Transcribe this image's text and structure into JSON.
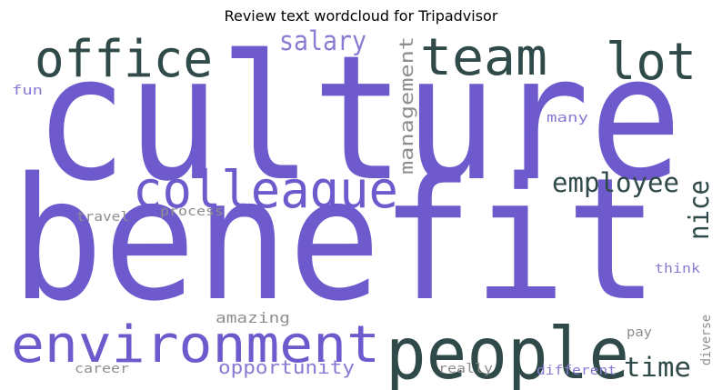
{
  "title": "Review text wordcloud for Tripadvisor",
  "palette": {
    "purple": "#6e5acd",
    "lavender": "#8a7ad4",
    "dark_teal": "#2f4a48",
    "gray": "#8e8e8e"
  },
  "words": [
    {
      "text": "culture",
      "color": "purple"
    },
    {
      "text": "benefit",
      "color": "purple"
    },
    {
      "text": "people",
      "color": "dark_teal"
    },
    {
      "text": "environment",
      "color": "purple"
    },
    {
      "text": "office",
      "color": "dark_teal"
    },
    {
      "text": "team",
      "color": "dark_teal"
    },
    {
      "text": "lot",
      "color": "dark_teal"
    },
    {
      "text": "colleague",
      "color": "purple"
    },
    {
      "text": "employee",
      "color": "dark_teal"
    },
    {
      "text": "management",
      "color": "gray"
    },
    {
      "text": "salary",
      "color": "lavender"
    },
    {
      "text": "nice",
      "color": "dark_teal"
    },
    {
      "text": "time",
      "color": "dark_teal"
    },
    {
      "text": "opportunity",
      "color": "lavender"
    },
    {
      "text": "amazing",
      "color": "gray"
    },
    {
      "text": "fun",
      "color": "lavender"
    },
    {
      "text": "travel",
      "color": "gray"
    },
    {
      "text": "process",
      "color": "gray"
    },
    {
      "text": "many",
      "color": "lavender"
    },
    {
      "text": "think",
      "color": "lavender"
    },
    {
      "text": "pay",
      "color": "gray"
    },
    {
      "text": "diverse",
      "color": "gray"
    },
    {
      "text": "career",
      "color": "gray"
    },
    {
      "text": "really",
      "color": "gray"
    },
    {
      "text": "different",
      "color": "lavender"
    }
  ]
}
